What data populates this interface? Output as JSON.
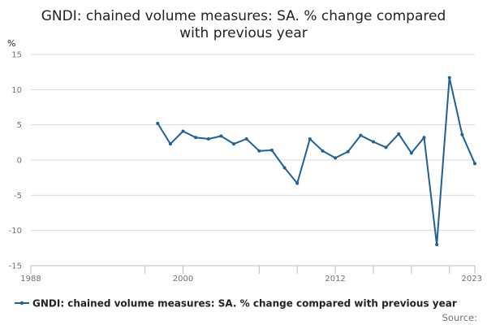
{
  "chart_data": {
    "type": "line",
    "title_lines": [
      "GNDI: chained volume measures: SA. % change compared",
      "with previous year"
    ],
    "ylabel": "%",
    "xlabel": "",
    "xlim": [
      1988,
      2023
    ],
    "ylim": [
      -15,
      15
    ],
    "y_ticks": [
      15,
      10,
      5,
      0,
      -5,
      -10,
      -15
    ],
    "y_tick_labels": [
      "15",
      "10",
      "5",
      "0",
      "-5",
      "-10",
      "-15"
    ],
    "x_ticks": [
      1988,
      2000,
      2012,
      2023
    ],
    "x_tick_labels": [
      "1988",
      "2000",
      "2012",
      "2023"
    ],
    "x_minor_ticks": [
      1988,
      1997,
      2000,
      2006,
      2009,
      2012,
      2015,
      2018,
      2021,
      2023
    ],
    "grid": true,
    "series": [
      {
        "name": "GNDI: chained volume measures: SA. % change compared with previous year",
        "color": "#206095",
        "x": [
          1998,
          1999,
          2000,
          2001,
          2002,
          2003,
          2004,
          2005,
          2006,
          2007,
          2008,
          2009,
          2010,
          2011,
          2012,
          2013,
          2014,
          2015,
          2016,
          2017,
          2018,
          2019,
          2020,
          2021,
          2022,
          2023
        ],
        "y": [
          5.2,
          2.3,
          4.1,
          3.2,
          3.0,
          3.4,
          2.3,
          3.0,
          1.3,
          1.4,
          -1.1,
          -3.3,
          3.0,
          1.3,
          0.3,
          1.2,
          3.5,
          2.6,
          1.8,
          3.7,
          1.0,
          3.2,
          -12.0,
          11.7,
          3.6,
          -0.5
        ]
      }
    ],
    "legend_position": "bottom",
    "source_label": "Source:"
  }
}
